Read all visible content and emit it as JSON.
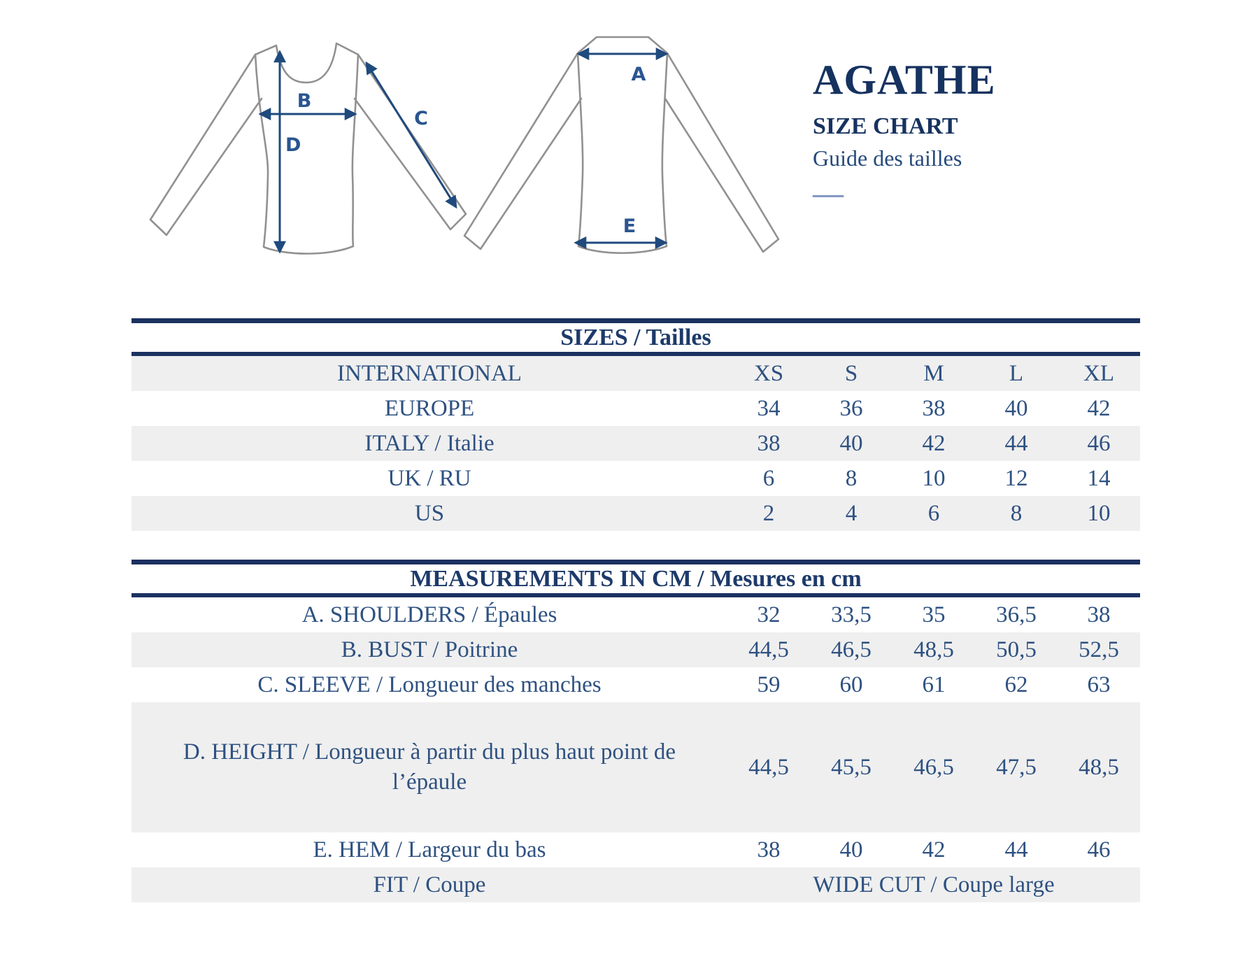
{
  "header": {
    "product_name": "AGATHE",
    "title": "SIZE CHART",
    "subtitle": "Guide des tailles",
    "divider": "—"
  },
  "diagram": {
    "labels": {
      "a": "A",
      "b": "B",
      "c": "C",
      "d": "D",
      "e": "E"
    }
  },
  "sizes_table": {
    "title": "SIZES / Tailles",
    "rows": [
      {
        "label": "INTERNATIONAL",
        "values": [
          "XS",
          "S",
          "M",
          "L",
          "XL"
        ]
      },
      {
        "label": "EUROPE",
        "values": [
          "34",
          "36",
          "38",
          "40",
          "42"
        ]
      },
      {
        "label": "ITALY / Italie",
        "values": [
          "38",
          "40",
          "42",
          "44",
          "46"
        ]
      },
      {
        "label": "UK / RU",
        "values": [
          "6",
          "8",
          "10",
          "12",
          "14"
        ]
      },
      {
        "label": "US",
        "values": [
          "2",
          "4",
          "6",
          "8",
          "10"
        ]
      }
    ]
  },
  "measurements_table": {
    "title": "MEASUREMENTS IN CM / Mesures en cm",
    "rows": [
      {
        "label": "A. SHOULDERS / Épaules",
        "values": [
          "32",
          "33,5",
          "35",
          "36,5",
          "38"
        ]
      },
      {
        "label": "B. BUST / Poitrine",
        "values": [
          "44,5",
          "46,5",
          "48,5",
          "50,5",
          "52,5"
        ]
      },
      {
        "label": "C. SLEEVE / Longueur des manches",
        "values": [
          "59",
          "60",
          "61",
          "62",
          "63"
        ]
      },
      {
        "label": "D. HEIGHT / Longueur à partir du plus haut point de l’épaule",
        "values": [
          "44,5",
          "45,5",
          "46,5",
          "47,5",
          "48,5"
        ]
      },
      {
        "label": "E. HEM / Largeur du bas",
        "values": [
          "38",
          "40",
          "42",
          "44",
          "46"
        ]
      },
      {
        "label": "FIT / Coupe",
        "span": "WIDE CUT / Coupe large"
      }
    ]
  },
  "colors": {
    "rule_navy": "#1b3160",
    "header_text": "#1d3a6a",
    "table_text": "#2e5181",
    "title_text": "#16325f",
    "row_shade": "#efefef",
    "garment_outline": "#919191",
    "arrow_navy": "#1f4a7d",
    "dash_blue": "#8499c4"
  }
}
